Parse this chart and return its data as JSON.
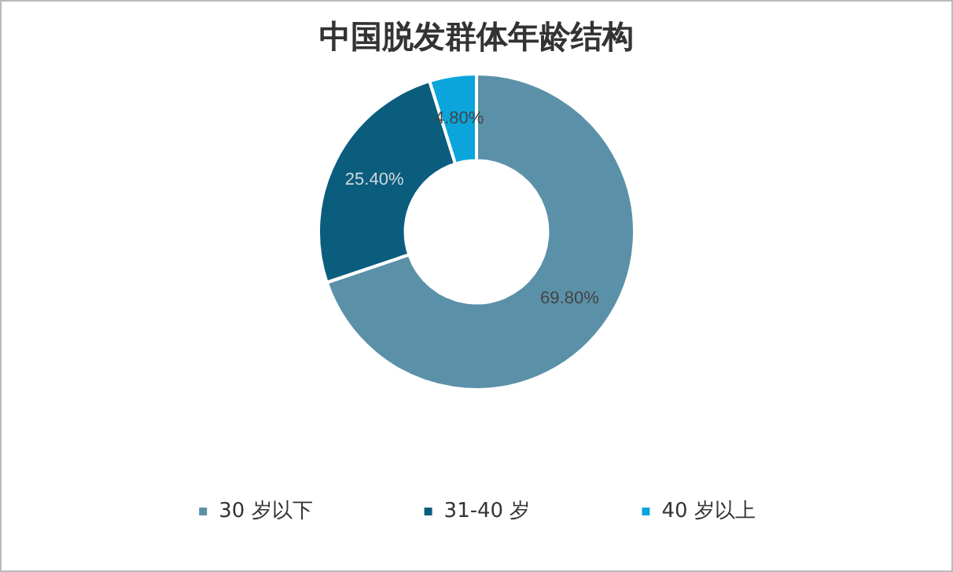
{
  "chart_data": {
    "type": "donut",
    "title": "中国脱发群体年龄结构",
    "categories": [
      "30 岁以下",
      "31-40 岁",
      "40 岁以上"
    ],
    "values": [
      69.8,
      25.4,
      4.8
    ],
    "colors": [
      "#5b91a8",
      "#0b5d7e",
      "#0ba5dc"
    ],
    "value_labels": [
      "69.80%",
      "25.40%",
      "4.80%"
    ],
    "legend": "bottom"
  }
}
